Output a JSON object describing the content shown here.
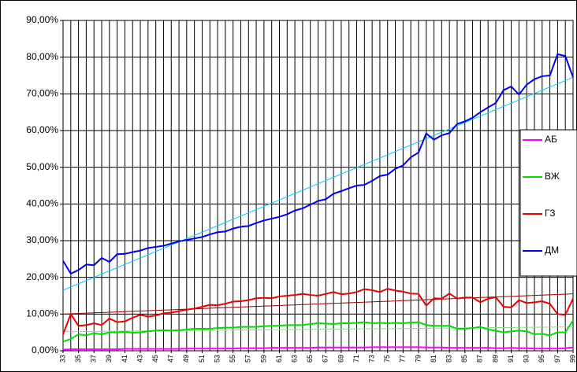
{
  "chart_data": {
    "type": "line",
    "x": [
      33,
      34,
      35,
      36,
      37,
      38,
      39,
      40,
      41,
      42,
      43,
      44,
      45,
      46,
      47,
      48,
      49,
      50,
      51,
      52,
      53,
      54,
      55,
      56,
      57,
      58,
      59,
      60,
      61,
      62,
      63,
      64,
      65,
      66,
      67,
      68,
      69,
      70,
      71,
      72,
      73,
      74,
      75,
      76,
      77,
      78,
      79,
      80,
      81,
      82,
      83,
      84,
      85,
      86,
      87,
      88,
      89,
      90,
      91,
      92,
      93,
      94,
      95,
      96,
      97,
      98,
      99
    ],
    "xlim": [
      33,
      99
    ],
    "xticks": [
      33,
      35,
      37,
      39,
      41,
      43,
      45,
      47,
      49,
      51,
      53,
      55,
      57,
      59,
      61,
      63,
      65,
      67,
      69,
      71,
      73,
      75,
      77,
      79,
      81,
      83,
      85,
      87,
      89,
      91,
      93,
      95,
      97,
      99
    ],
    "ylim": [
      0,
      90
    ],
    "yticks": [
      {
        "value": 0,
        "label": "0,00%"
      },
      {
        "value": 10,
        "label": "10,00%"
      },
      {
        "value": 20,
        "label": "20,00%"
      },
      {
        "value": 30,
        "label": "30,00%"
      },
      {
        "value": 40,
        "label": "40,00%"
      },
      {
        "value": 50,
        "label": "50,00%"
      },
      {
        "value": 60,
        "label": "60,00%"
      },
      {
        "value": 70,
        "label": "70,00%"
      },
      {
        "value": 80,
        "label": "80,00%"
      },
      {
        "value": 90,
        "label": "90,00%"
      }
    ],
    "grid": true,
    "legend": "right",
    "series": [
      {
        "name": "АБ",
        "color": "#ff00ff",
        "values": [
          0.3,
          0.4,
          0.4,
          0.4,
          0.4,
          0.4,
          0.4,
          0.4,
          0.5,
          0.5,
          0.5,
          0.5,
          0.5,
          0.5,
          0.5,
          0.5,
          0.6,
          0.6,
          0.6,
          0.6,
          0.6,
          0.6,
          0.6,
          0.7,
          0.7,
          0.7,
          0.7,
          0.8,
          0.8,
          0.8,
          0.8,
          0.8,
          0.8,
          0.9,
          0.9,
          0.9,
          0.9,
          0.9,
          0.9,
          0.9,
          1,
          1,
          1,
          1,
          1,
          1,
          1,
          0.9,
          0.9,
          0.9,
          0.8,
          0.8,
          0.8,
          0.8,
          0.8,
          0.8,
          0.7,
          0.7,
          0.8,
          0.7,
          0.7,
          0.6,
          0.6,
          0.6,
          0.6,
          0.7,
          0.9
        ]
      },
      {
        "name": "ВЖ",
        "color": "#00dd00",
        "values": [
          2.5,
          3.2,
          4.5,
          4.2,
          4.8,
          4.5,
          5,
          5,
          5.2,
          4.9,
          5,
          5.3,
          5.5,
          5.6,
          5.5,
          5.6,
          5.8,
          6,
          6,
          6,
          6.2,
          6.3,
          6.3,
          6.5,
          6.5,
          6.5,
          6.7,
          6.8,
          6.8,
          7,
          7,
          7,
          7.3,
          7.5,
          7.4,
          7.3,
          7.5,
          7.5,
          7.6,
          7.8,
          7.5,
          7.6,
          7.5,
          7.6,
          7.5,
          7.7,
          7.8,
          7,
          6.8,
          6.8,
          6.8,
          6,
          6,
          6.2,
          6.5,
          5.8,
          5.5,
          5,
          5.3,
          5.5,
          5.3,
          4.5,
          4.6,
          4.2,
          5,
          5,
          8.3
        ]
      },
      {
        "name": "ГЗ",
        "color": "#ee0000",
        "values": [
          4.5,
          10,
          6.8,
          7,
          7.5,
          7,
          8.8,
          7.8,
          8,
          9,
          9.8,
          9.3,
          9.6,
          10.2,
          10.4,
          10.8,
          11.2,
          11.5,
          12,
          12.5,
          12.4,
          12.8,
          13.4,
          13.5,
          13.8,
          14.3,
          14.4,
          14.3,
          14.8,
          15,
          15.2,
          15.5,
          15.2,
          15,
          15.5,
          16,
          15.4,
          15.6,
          16,
          16.8,
          16.5,
          16,
          16.9,
          16.4,
          16.1,
          15.6,
          15.5,
          12.3,
          14.3,
          14.2,
          15.6,
          14.2,
          14.5,
          14.5,
          13.2,
          14.2,
          14.6,
          12,
          11.8,
          13.8,
          13,
          13.2,
          13.5,
          12.8,
          10,
          9.8,
          14.2
        ]
      },
      {
        "name": "ДМ",
        "color": "#0000ee",
        "values": [
          24.5,
          21,
          22,
          23.5,
          23.3,
          25.3,
          24.2,
          26.3,
          26.4,
          26.9,
          27.3,
          28,
          28.3,
          28.6,
          29.2,
          29.8,
          30.2,
          30.6,
          31,
          31.7,
          32.3,
          32.5,
          33.3,
          33.8,
          34,
          34.8,
          35.5,
          36,
          36.5,
          37.2,
          38.2,
          38.8,
          39.8,
          40.8,
          41.3,
          42.8,
          43.5,
          44.3,
          45,
          45.2,
          46.3,
          47.6,
          48,
          49.6,
          50.5,
          52.7,
          54,
          59.2,
          57.5,
          58.7,
          59.3,
          61.8,
          62.5,
          63.5,
          65,
          66.3,
          67.5,
          71,
          72,
          69.8,
          72.5,
          74,
          74.8,
          75,
          80.8,
          80.3,
          74.5
        ]
      }
    ],
    "trendlines": [
      {
        "color": "#88dd88",
        "values": [
          5.2,
          6.5
        ]
      },
      {
        "color": "#990000",
        "values": [
          10,
          15.5
        ]
      },
      {
        "color": "#00ccff",
        "values": [
          16.5,
          74.5
        ]
      }
    ]
  }
}
